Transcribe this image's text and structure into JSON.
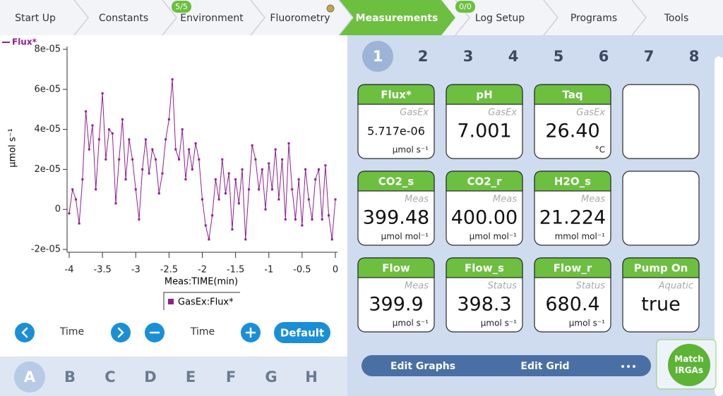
{
  "tabs": [
    {
      "label": "Start Up"
    },
    {
      "label": "Constants"
    },
    {
      "label": "Environment",
      "badge": "5/5"
    },
    {
      "label": "Fluorometry"
    },
    {
      "label": "Measurements"
    },
    {
      "label": "Log Setup",
      "badge": "0/0"
    },
    {
      "label": "Programs"
    },
    {
      "label": "Tools"
    }
  ],
  "chart_data": {
    "type": "line",
    "series_label": "Flux*",
    "ylabel": "µmol s⁻¹",
    "xlabel": "Meas:TIME(min)",
    "legend": "GasEx:Flux*",
    "color": "#8e1f8e",
    "x": [
      -4,
      -3.95,
      -3.9,
      -3.85,
      -3.8,
      -3.75,
      -3.7,
      -3.65,
      -3.6,
      -3.55,
      -3.5,
      -3.45,
      -3.4,
      -3.35,
      -3.3,
      -3.25,
      -3.2,
      -3.15,
      -3.1,
      -3.05,
      -3,
      -2.95,
      -2.9,
      -2.85,
      -2.8,
      -2.75,
      -2.7,
      -2.65,
      -2.6,
      -2.55,
      -2.5,
      -2.45,
      -2.4,
      -2.35,
      -2.3,
      -2.25,
      -2.2,
      -2.15,
      -2.1,
      -2.05,
      -2,
      -1.95,
      -1.9,
      -1.85,
      -1.8,
      -1.75,
      -1.7,
      -1.65,
      -1.6,
      -1.55,
      -1.5,
      -1.45,
      -1.4,
      -1.35,
      -1.3,
      -1.25,
      -1.2,
      -1.15,
      -1.1,
      -1.05,
      -1,
      -0.95,
      -0.9,
      -0.85,
      -0.8,
      -0.75,
      -0.7,
      -0.65,
      -0.6,
      -0.55,
      -0.5,
      -0.45,
      -0.4,
      -0.35,
      -0.3,
      -0.25,
      -0.2,
      -0.15,
      -0.1,
      -0.05,
      0
    ],
    "values": [
      -2e-06,
      1e-05,
      5e-06,
      -7e-06,
      1.5e-05,
      4.9e-05,
      3e-05,
      4.2e-05,
      1e-05,
      3.5e-05,
      5.8e-05,
      2.5e-05,
      4e-05,
      3.8e-05,
      3e-06,
      2.5e-05,
      4.5e-05,
      1.5e-05,
      3.5e-05,
      2.5e-05,
      1e-05,
      -5e-06,
      2e-05,
      3.5e-05,
      1.8e-05,
      3e-05,
      2.5e-05,
      8e-06,
      1.8e-05,
      3.5e-05,
      4.5e-05,
      6.5e-05,
      3e-05,
      2.5e-05,
      4e-05,
      1.5e-05,
      3e-05,
      2e-05,
      3.3e-05,
      2.5e-05,
      5e-06,
      -8e-06,
      -1.5e-05,
      -3e-06,
      1.5e-05,
      5e-06,
      2.5e-05,
      8e-06,
      1.8e-05,
      -1e-05,
      1.5e-05,
      3e-06,
      2e-05,
      -1.5e-05,
      1e-05,
      3.2e-05,
      2.5e-05,
      1e-05,
      2e-05,
      0,
      2.3e-05,
      1e-05,
      3e-05,
      5e-06,
      2.5e-05,
      -5e-06,
      3.3e-05,
      1e-05,
      -5e-06,
      1.5e-05,
      -8e-06,
      2e-05,
      5e-06,
      -5e-06,
      1.5e-05,
      2e-05,
      -5e-06,
      2.2e-05,
      -3e-06,
      -1.5e-05,
      5e-06
    ],
    "xlim": [
      -4,
      0
    ],
    "xticks": [
      -4,
      -3.5,
      -3,
      -2.5,
      -2,
      -1.5,
      -1,
      -0.5,
      0
    ],
    "ylim": [
      -2e-05,
      8e-05
    ],
    "yticks": [
      {
        "value": -2e-05,
        "label": "-2e-05"
      },
      0,
      {
        "value": 2e-05,
        "label": "2e-05"
      },
      {
        "value": 4e-05,
        "label": "4e-05"
      },
      {
        "value": 6e-05,
        "label": "6e-05"
      },
      {
        "value": 8e-05,
        "label": "8e-05"
      }
    ]
  },
  "controls": {
    "left_label": "Time",
    "right_label": "Time",
    "default": "Default"
  },
  "graph_pages": [
    "A",
    "B",
    "C",
    "D",
    "E",
    "F",
    "G",
    "H"
  ],
  "grid_pages": [
    "1",
    "2",
    "3",
    "4",
    "5",
    "6",
    "7",
    "8"
  ],
  "cards": [
    {
      "title": "Flux*",
      "source": "GasEx",
      "value": "5.717e-06",
      "unit": "µmol s⁻¹"
    },
    {
      "title": "pH",
      "source": "GasEx",
      "value": "7.001"
    },
    {
      "title": "Taq",
      "source": "GasEx",
      "value": "26.40",
      "unit": "°C"
    },
    null,
    {
      "title": "CO2_s",
      "source": "Meas",
      "value": "399.48",
      "unit": "µmol mol⁻¹"
    },
    {
      "title": "CO2_r",
      "source": "Meas",
      "value": "400.00",
      "unit": "µmol mol⁻¹"
    },
    {
      "title": "H2O_s",
      "source": "Meas",
      "value": "21.224",
      "unit": "mmol mol⁻¹"
    },
    null,
    {
      "title": "Flow",
      "source": "Meas",
      "value": "399.9",
      "unit": "µmol s⁻¹"
    },
    {
      "title": "Flow_s",
      "source": "Status",
      "value": "398.3",
      "unit": "µmol s⁻¹"
    },
    {
      "title": "Flow_r",
      "source": "Status",
      "value": "680.4",
      "unit": "µmol s⁻¹"
    },
    {
      "title": "Pump On",
      "source": "Aquatic",
      "value": "true"
    }
  ],
  "actions": {
    "edit_graphs": "Edit Graphs",
    "edit_grid": "Edit Grid",
    "match": [
      "Match",
      "IRGAs"
    ]
  }
}
